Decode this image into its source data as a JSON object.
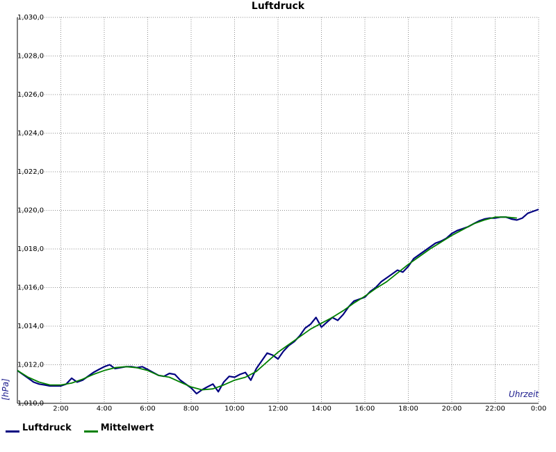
{
  "chart_data": {
    "type": "line",
    "title": "Luftdruck",
    "xlabel": "Uhrzeit",
    "ylabel": "[hPa]",
    "xlim": [
      0,
      24
    ],
    "ylim": [
      1010.0,
      1030.0
    ],
    "y_ticks": [
      1010,
      1012,
      1014,
      1016,
      1018,
      1020,
      1022,
      1024,
      1026,
      1028,
      1030
    ],
    "y_tick_labels": [
      "1,010,0",
      "1,012,0",
      "1,014,0",
      "1,016,0",
      "1,018,0",
      "1,020,0",
      "1,022,0",
      "1,024,0",
      "1,026,0",
      "1,028,0",
      "1,030,0"
    ],
    "x_ticks": [
      2,
      4,
      6,
      8,
      10,
      12,
      14,
      16,
      18,
      20,
      22,
      24
    ],
    "x_tick_labels": [
      "2:00",
      "4:00",
      "6:00",
      "8:00",
      "10:00",
      "12:00",
      "14:00",
      "16:00",
      "18:00",
      "20:00",
      "22:00",
      "0:00"
    ],
    "grid": true,
    "legend_position": "bottom-left",
    "series": [
      {
        "name": "Luftdruck",
        "color": "#000080",
        "x": [
          0,
          0.25,
          0.5,
          0.75,
          1,
          1.25,
          1.5,
          1.75,
          2,
          2.25,
          2.5,
          2.75,
          3,
          3.25,
          3.5,
          3.75,
          4,
          4.25,
          4.5,
          4.75,
          5,
          5.25,
          5.5,
          5.75,
          6,
          6.25,
          6.5,
          6.75,
          7,
          7.25,
          7.5,
          7.75,
          8,
          8.25,
          8.5,
          8.75,
          9,
          9.25,
          9.5,
          9.75,
          10,
          10.25,
          10.5,
          10.75,
          11,
          11.25,
          11.5,
          11.75,
          12,
          12.25,
          12.5,
          12.75,
          13,
          13.25,
          13.5,
          13.75,
          14,
          14.25,
          14.5,
          14.75,
          15,
          15.25,
          15.5,
          15.75,
          16,
          16.25,
          16.5,
          16.75,
          17,
          17.25,
          17.5,
          17.75,
          18,
          18.25,
          18.5,
          18.75,
          19,
          19.25,
          19.5,
          19.75,
          20,
          20.25,
          20.5,
          20.75,
          21,
          21.25,
          21.5,
          21.75,
          22,
          22.25,
          22.5,
          22.75,
          23,
          23.25,
          23.5,
          23.75,
          24
        ],
        "values": [
          1011.7,
          1011.5,
          1011.3,
          1011.1,
          1011.0,
          1010.95,
          1010.9,
          1010.9,
          1010.9,
          1011.0,
          1011.3,
          1011.1,
          1011.2,
          1011.4,
          1011.6,
          1011.75,
          1011.9,
          1012.0,
          1011.8,
          1011.85,
          1011.9,
          1011.9,
          1011.85,
          1011.9,
          1011.75,
          1011.6,
          1011.45,
          1011.4,
          1011.55,
          1011.5,
          1011.2,
          1011.0,
          1010.8,
          1010.5,
          1010.7,
          1010.85,
          1011.0,
          1010.6,
          1011.1,
          1011.4,
          1011.35,
          1011.5,
          1011.6,
          1011.2,
          1011.8,
          1012.2,
          1012.6,
          1012.5,
          1012.3,
          1012.7,
          1013.0,
          1013.2,
          1013.5,
          1013.9,
          1014.1,
          1014.45,
          1013.95,
          1014.2,
          1014.45,
          1014.3,
          1014.6,
          1015.0,
          1015.3,
          1015.4,
          1015.5,
          1015.8,
          1016.0,
          1016.3,
          1016.5,
          1016.7,
          1016.9,
          1016.8,
          1017.1,
          1017.5,
          1017.7,
          1017.9,
          1018.1,
          1018.3,
          1018.4,
          1018.55,
          1018.8,
          1018.95,
          1019.05,
          1019.15,
          1019.3,
          1019.45,
          1019.55,
          1019.6,
          1019.6,
          1019.65,
          1019.65,
          1019.55,
          1019.5,
          1019.6,
          1019.85,
          1019.95,
          1020.05
        ]
      },
      {
        "name": "Mittelwert",
        "color": "#008000",
        "x": [
          0,
          0.5,
          1,
          1.5,
          2,
          2.5,
          3,
          3.5,
          4,
          4.5,
          5,
          5.5,
          6,
          6.5,
          7,
          7.5,
          8,
          8.5,
          9,
          9.5,
          10,
          10.5,
          11,
          11.5,
          12,
          12.5,
          13,
          13.5,
          14,
          14.5,
          15,
          15.5,
          16,
          16.5,
          17,
          17.5,
          18,
          18.5,
          19,
          19.5,
          20,
          20.5,
          21,
          21.5,
          22,
          22.5,
          23
        ],
        "values": [
          1011.7,
          1011.35,
          1011.1,
          1010.95,
          1010.95,
          1011.05,
          1011.25,
          1011.5,
          1011.7,
          1011.85,
          1011.9,
          1011.85,
          1011.7,
          1011.45,
          1011.35,
          1011.1,
          1010.85,
          1010.7,
          1010.75,
          1010.95,
          1011.2,
          1011.35,
          1011.65,
          1012.15,
          1012.65,
          1013.05,
          1013.45,
          1013.85,
          1014.15,
          1014.45,
          1014.8,
          1015.2,
          1015.55,
          1015.95,
          1016.3,
          1016.75,
          1017.2,
          1017.6,
          1018.0,
          1018.35,
          1018.7,
          1019.0,
          1019.3,
          1019.5,
          1019.65,
          1019.65,
          1019.6
        ]
      }
    ]
  }
}
